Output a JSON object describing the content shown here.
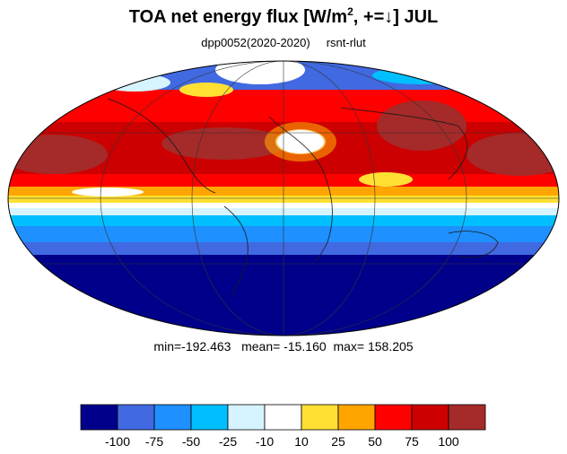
{
  "header": {
    "title_prefix": "TOA net energy flux  [W/m",
    "title_sup": "2",
    "title_suffix": ", +=↓] JUL",
    "experiment": "dpp0052(2020-2020)",
    "variable": "rsnt-rlut"
  },
  "stats": {
    "text": "min=-192.463   mean= -15.160  max= 158.205",
    "min": -192.463,
    "mean": -15.16,
    "max": 158.205
  },
  "map": {
    "projection": "Mollweide",
    "graticule": true,
    "coastlines": true
  },
  "colorbar": {
    "tick_labels": [
      "-100",
      "-75",
      "-50",
      "-25",
      "-10",
      "10",
      "25",
      "50",
      "75",
      "100"
    ],
    "colors": [
      "#00008b",
      "#4169e1",
      "#1e90ff",
      "#00bfff",
      "#d6f4ff",
      "#ffffff",
      "#ffe033",
      "#ffa500",
      "#ff0000",
      "#cc0000",
      "#a52a2a"
    ]
  }
}
